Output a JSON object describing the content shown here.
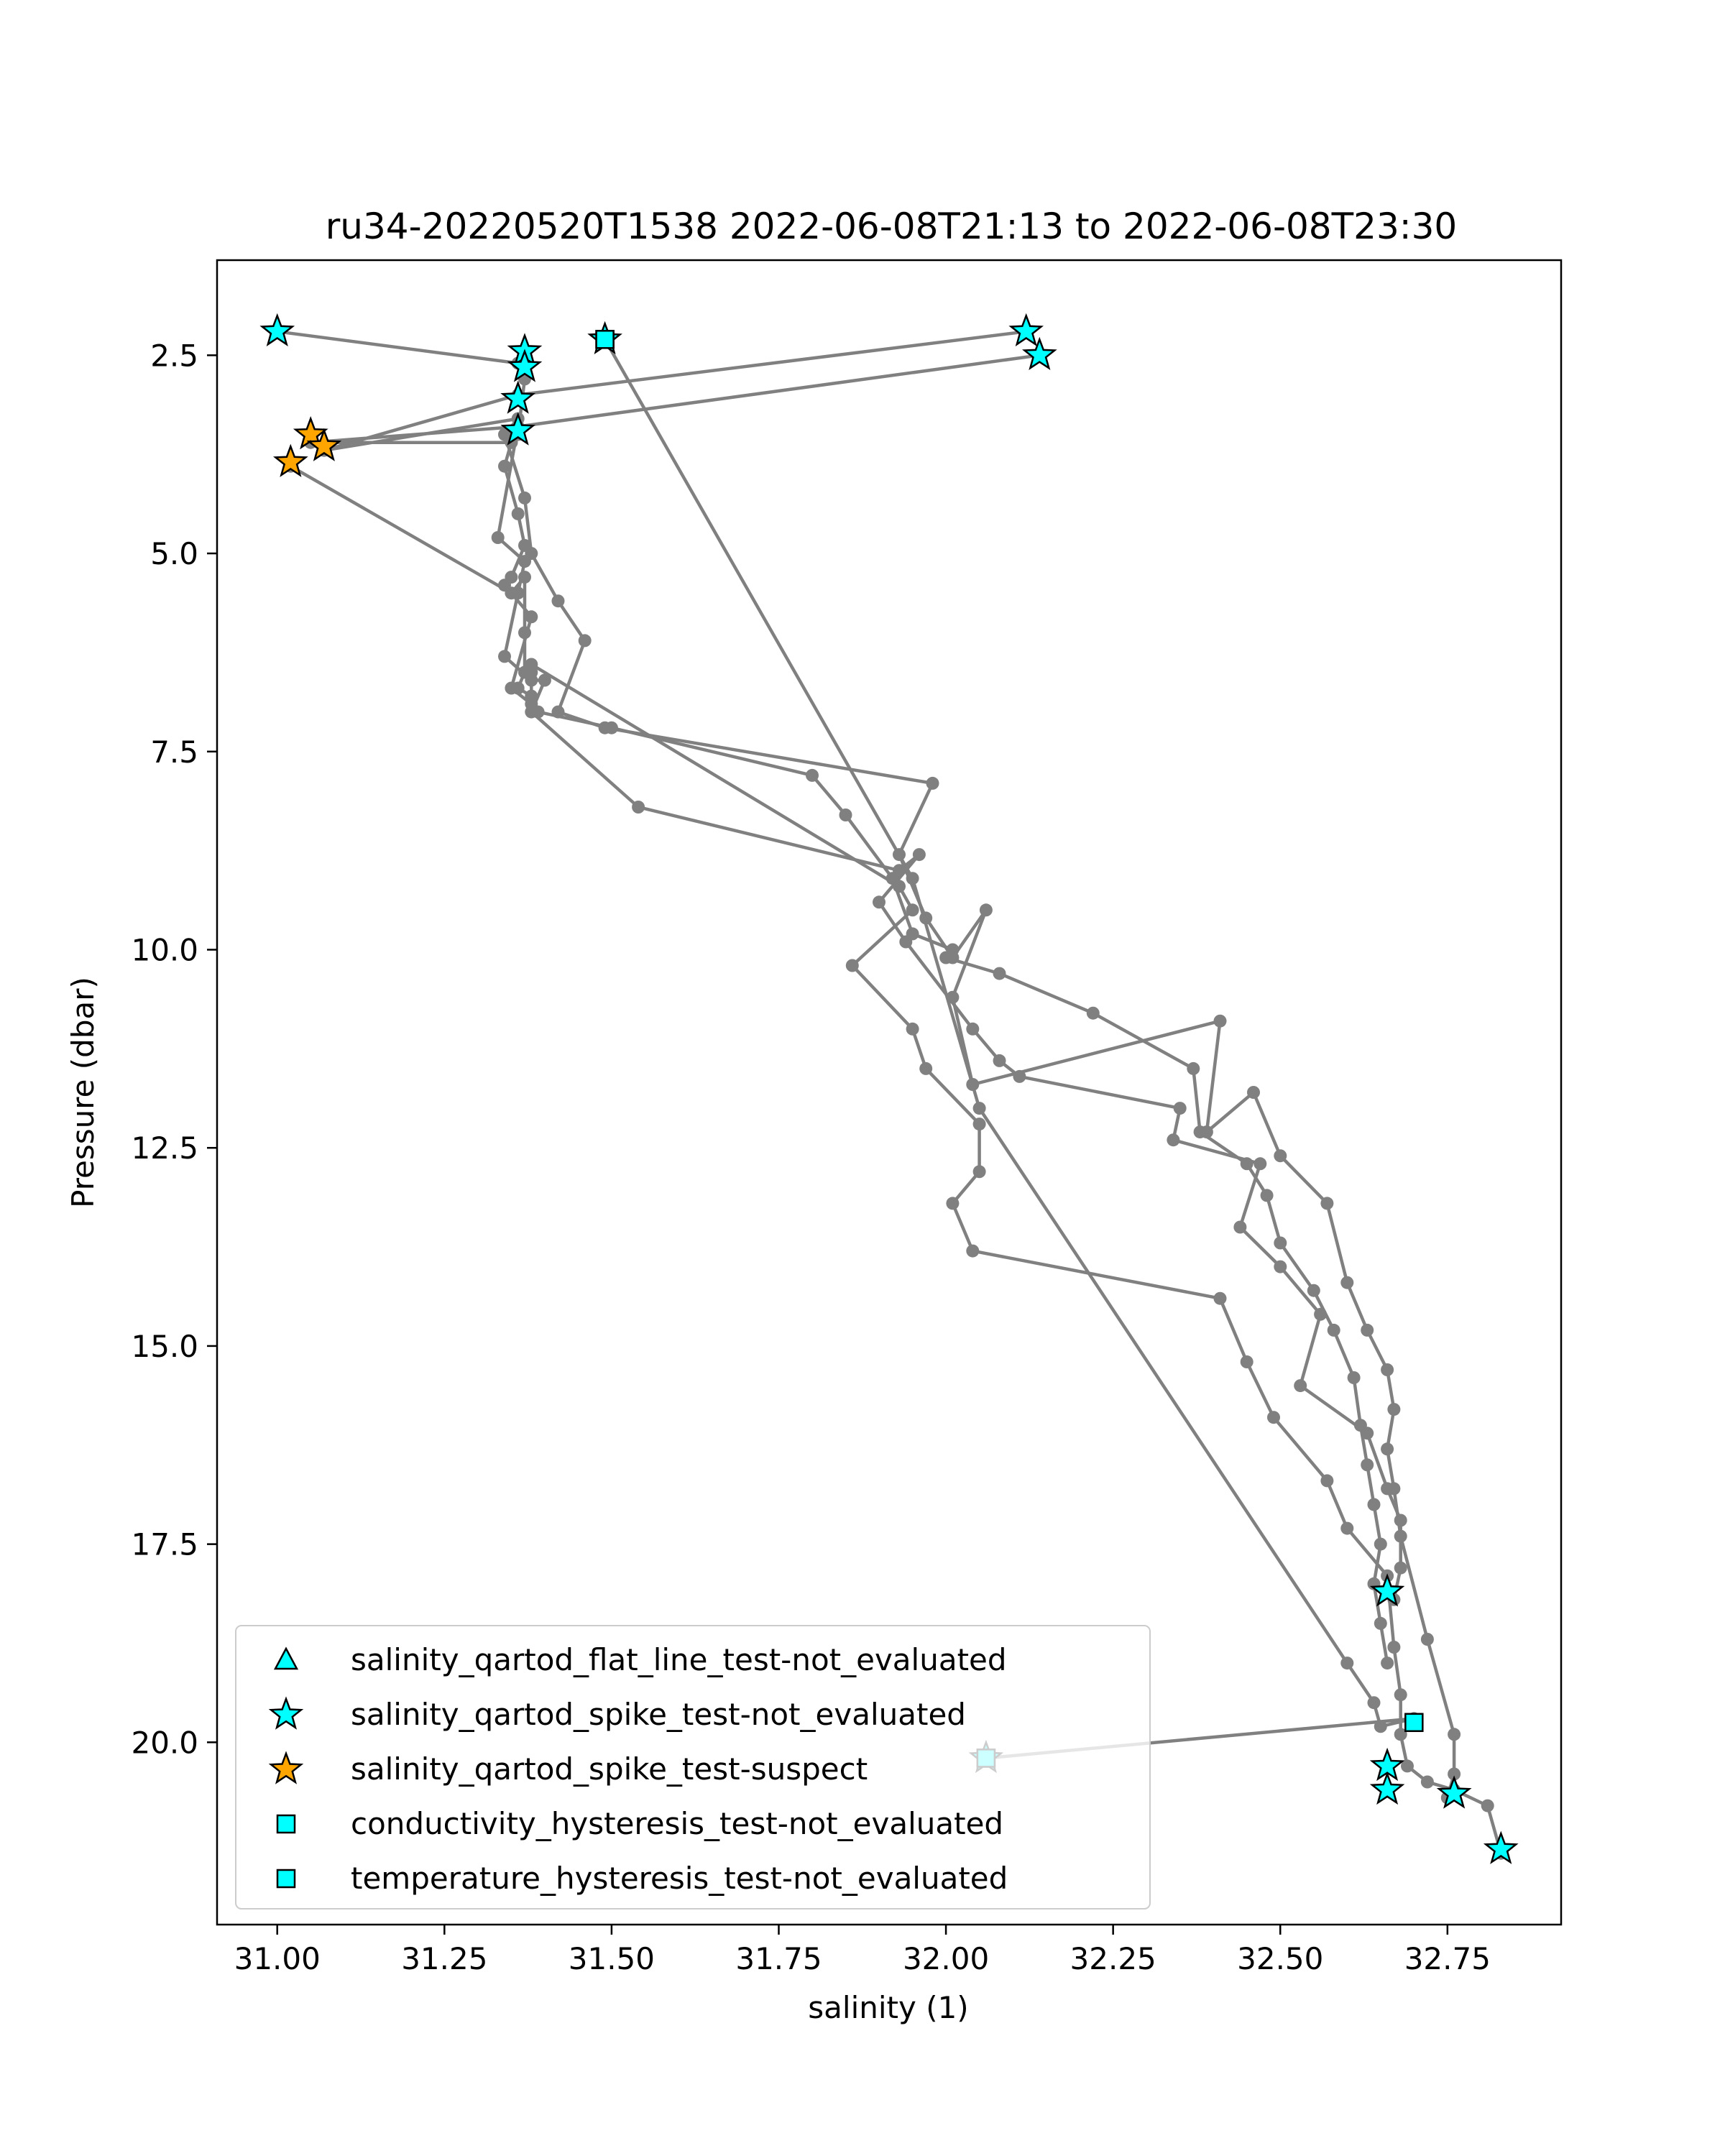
{
  "chart_data": {
    "type": "scatter",
    "title": "ru34-20220520T1538 2022-06-08T21:13 to 2022-06-08T23:30",
    "xlabel": "salinity (1)",
    "ylabel": "Pressure (dbar)",
    "xlim": [
      30.91,
      32.92
    ],
    "ylim": [
      22.3,
      1.3
    ],
    "y_inverted": true,
    "xticks": [
      "31.00",
      "31.25",
      "31.50",
      "31.75",
      "32.00",
      "32.25",
      "32.50",
      "32.75"
    ],
    "yticks": [
      "2.5",
      "5.0",
      "7.5",
      "10.0",
      "12.5",
      "15.0",
      "17.5",
      "20.0"
    ],
    "xtick_values": [
      31.0,
      31.25,
      31.5,
      31.75,
      32.0,
      32.25,
      32.5,
      32.75
    ],
    "ytick_values": [
      2.5,
      5.0,
      7.5,
      10.0,
      12.5,
      15.0,
      17.5,
      20.0
    ],
    "grid": false,
    "legend_position": "lower-left",
    "line_color": "#808080",
    "profiles": [
      {
        "x": [
          31.0,
          31.36,
          31.37,
          31.36,
          31.35,
          31.34,
          31.36,
          31.37,
          31.35,
          31.34,
          31.38,
          31.35,
          31.38,
          31.39,
          31.5,
          31.8,
          31.85,
          31.92,
          31.95,
          32.01,
          32.0,
          32.08,
          32.22,
          32.37,
          32.38,
          32.45,
          32.48,
          32.5,
          32.55,
          32.58,
          32.61,
          32.62,
          32.63,
          32.64,
          32.65,
          32.64,
          32.65,
          32.66
        ]
      },
      {
        "x": [
          31.49,
          31.49,
          31.95,
          32.05,
          32.6,
          32.64,
          32.65,
          32.7,
          32.06
        ]
      },
      {
        "x": [
          32.12,
          31.36,
          31.07,
          31.36,
          31.34,
          31.37,
          31.38,
          31.42,
          31.46,
          31.42,
          31.49,
          31.98,
          31.93,
          31.97,
          32.01,
          32.06,
          32.01,
          32.04,
          32.41,
          32.39,
          32.46,
          32.5,
          32.57,
          32.6,
          32.63,
          32.66,
          32.67,
          32.66,
          32.67,
          32.68,
          32.72,
          32.76,
          32.76,
          32.75
        ]
      },
      {
        "x": [
          32.14,
          31.36,
          31.05,
          31.35,
          31.36,
          31.33,
          31.37,
          31.36,
          31.34,
          31.38,
          31.4,
          31.38,
          31.54,
          31.93,
          31.96,
          31.9,
          31.94,
          32.04,
          32.08,
          32.11,
          32.35,
          32.34,
          32.47,
          32.44,
          32.5,
          32.56,
          32.53,
          32.63,
          32.66,
          32.68,
          32.68,
          32.67,
          32.66
        ]
      },
      {
        "x": [
          31.02,
          31.35,
          31.37,
          31.37,
          31.37,
          31.36,
          31.38,
          31.38,
          31.38,
          31.93,
          31.95,
          31.86,
          31.95,
          31.97,
          32.05,
          32.05,
          32.01,
          32.04,
          32.41,
          32.45,
          32.49,
          32.57,
          32.6,
          32.66,
          32.67,
          32.68,
          32.68,
          32.69,
          32.72,
          32.76,
          32.81,
          32.83
        ]
      }
    ],
    "profiles_y": [
      [
        2.2,
        2.6,
        2.8,
        3.5,
        3.6,
        3.9,
        4.5,
        4.9,
        5.3,
        5.4,
        5.8,
        6.7,
        6.9,
        7.0,
        7.2,
        7.8,
        8.3,
        9.1,
        9.8,
        10.0,
        10.1,
        10.3,
        10.8,
        11.5,
        12.3,
        12.7,
        13.1,
        13.7,
        14.3,
        14.8,
        15.4,
        16.0,
        16.5,
        17.0,
        17.5,
        18.0,
        18.5,
        19.0
      ],
      [
        2.3,
        2.3,
        9.1,
        12.0,
        19.0,
        19.5,
        19.8,
        19.7,
        20.2
      ],
      [
        2.2,
        3.0,
        3.7,
        3.3,
        3.5,
        4.3,
        5.0,
        5.6,
        6.1,
        7.0,
        7.2,
        7.9,
        8.8,
        9.6,
        10.1,
        9.5,
        10.6,
        11.7,
        10.9,
        12.3,
        11.8,
        12.6,
        13.2,
        14.2,
        14.8,
        15.3,
        15.8,
        16.3,
        16.8,
        17.4,
        18.7,
        19.9,
        20.4,
        20.7
      ],
      [
        2.5,
        3.4,
        3.6,
        3.6,
        3.4,
        4.8,
        5.1,
        5.5,
        6.3,
        6.6,
        6.6,
        7.0,
        8.2,
        9.0,
        8.8,
        9.4,
        9.9,
        11.0,
        11.4,
        11.6,
        12.0,
        12.4,
        12.7,
        13.5,
        14.0,
        14.6,
        15.5,
        16.1,
        16.8,
        17.2,
        17.8,
        18.2,
        18.1
      ],
      [
        3.9,
        5.5,
        5.3,
        6.0,
        6.5,
        6.7,
        6.8,
        6.5,
        6.4,
        9.2,
        9.5,
        10.2,
        11.0,
        11.5,
        12.2,
        12.8,
        13.2,
        13.8,
        14.4,
        15.2,
        15.9,
        16.7,
        17.3,
        17.9,
        18.8,
        19.4,
        19.9,
        20.3,
        20.5,
        20.6,
        20.8,
        21.4
      ]
    ],
    "series": [
      {
        "name": "salinity_qartod_flat_line_test-not_evaluated",
        "marker": "triangle",
        "color": "#00ffff",
        "x": [],
        "y": []
      },
      {
        "name": "salinity_qartod_spike_test-not_evaluated",
        "marker": "star",
        "color": "#00ffff",
        "x": [
          31.0,
          31.37,
          31.37,
          31.36,
          31.36,
          32.12,
          32.14,
          31.49,
          32.66,
          32.66,
          32.66,
          32.76,
          32.83,
          32.06
        ],
        "y": [
          2.2,
          2.45,
          2.65,
          3.05,
          3.45,
          2.2,
          2.5,
          2.3,
          18.1,
          20.3,
          20.6,
          20.65,
          21.35,
          20.2
        ]
      },
      {
        "name": "salinity_qartod_spike_test-suspect",
        "marker": "star",
        "color": "#ffa500",
        "x": [
          31.05,
          31.07,
          31.02
        ],
        "y": [
          3.5,
          3.65,
          3.85
        ]
      },
      {
        "name": "conductivity_hysteresis_test-not_evaluated",
        "marker": "square",
        "color": "#00ffff",
        "x": [
          31.49,
          32.06,
          32.7
        ],
        "y": [
          2.3,
          20.2,
          19.75
        ]
      },
      {
        "name": "temperature_hysteresis_test-not_evaluated",
        "marker": "square",
        "color": "#00ffff",
        "x": [
          31.49,
          32.06
        ],
        "y": [
          2.3,
          20.2
        ]
      }
    ]
  }
}
